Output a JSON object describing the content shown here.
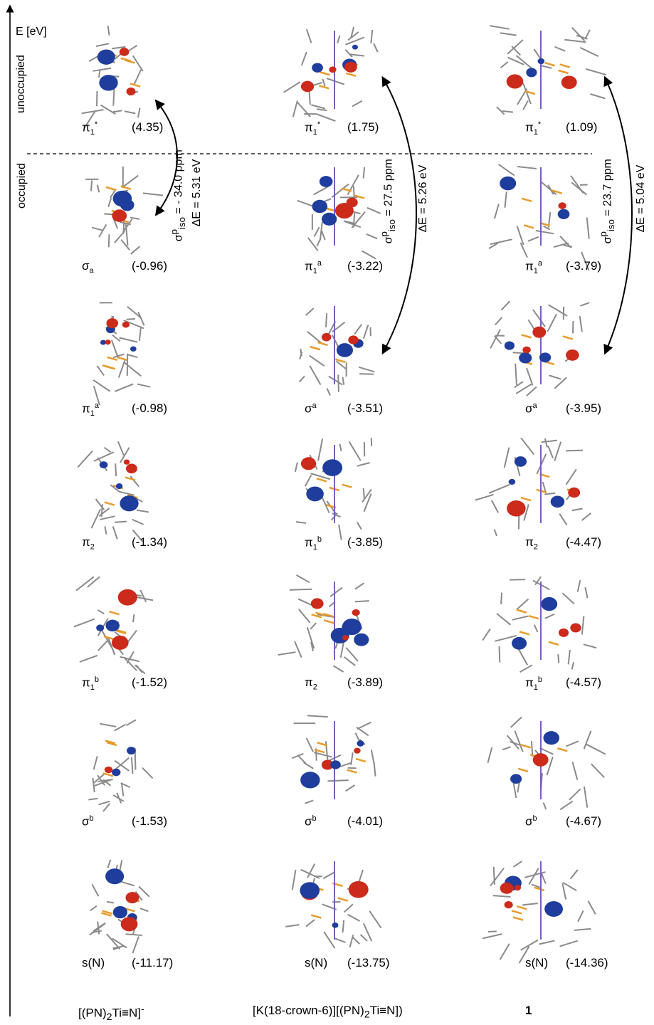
{
  "axis": {
    "label": "E [eV]"
  },
  "regions": {
    "unoccupied": "unoccupied",
    "occupied": "occupied"
  },
  "columns": [
    {
      "compound": "[(PN)2Ti≡N]-",
      "gap": {
        "shielding": "σpiso = - 34.0 ppm",
        "delta_e": "ΔE = 5.31 eV"
      },
      "orbitals": [
        {
          "name": "π1*",
          "energy": "(4.35)"
        },
        {
          "name": "σa",
          "energy": "(-0.96)"
        },
        {
          "name": "π1a",
          "energy": "(-0.98)"
        },
        {
          "name": "π2",
          "energy": "(-1.34)"
        },
        {
          "name": "π1b",
          "energy": "(-1.52)"
        },
        {
          "name": "σb",
          "energy": "(-1.53)"
        },
        {
          "name": "s(N)",
          "energy": "(-11.17)"
        }
      ]
    },
    {
      "compound": "[K(18-crown-6)][(PN)2Ti≡N])",
      "gap": {
        "shielding": "σpiso = 27.5 ppm",
        "delta_e": "ΔE = 5.26 eV"
      },
      "orbitals": [
        {
          "name": "π1*",
          "energy": "(1.75)"
        },
        {
          "name": "π1a",
          "energy": "(-3.22)"
        },
        {
          "name": "σa",
          "energy": "(-3.51)"
        },
        {
          "name": "π1b",
          "energy": "(-3.85)"
        },
        {
          "name": "π2",
          "energy": "(-3.89)"
        },
        {
          "name": "σb",
          "energy": "(-4.01)"
        },
        {
          "name": "s(N)",
          "energy": "(-13.75)"
        }
      ]
    },
    {
      "compound": "1",
      "gap": {
        "shielding": "σpiso = 23.7 ppm",
        "delta_e": "ΔE = 5.04 eV"
      },
      "orbitals": [
        {
          "name": "π1*",
          "energy": "(1.09)"
        },
        {
          "name": "π1a",
          "energy": "(-3.79)"
        },
        {
          "name": "σa",
          "energy": "(-3.95)"
        },
        {
          "name": "π2",
          "energy": "(-4.47)"
        },
        {
          "name": "π1b",
          "energy": "(-4.57)"
        },
        {
          "name": "σb",
          "energy": "(-4.67)"
        },
        {
          "name": "s(N)",
          "energy": "(-14.36)"
        }
      ]
    }
  ],
  "colors": {
    "lobe_positive": "#cc2a1a",
    "lobe_negative": "#1f3d9c",
    "stick": "#8a8a8a",
    "phosphorus": "#e89b2a",
    "bond_k": "#7b5cc4"
  }
}
